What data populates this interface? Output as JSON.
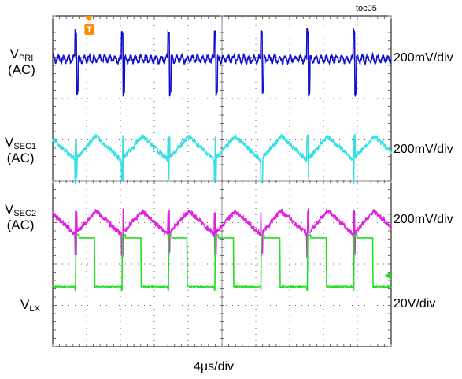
{
  "chart_data": {
    "type": "line",
    "title": "",
    "figure_tag": "toc05",
    "x_scale_label": "4μs/div",
    "trigger_marker": "T",
    "divisions": {
      "x": 10,
      "y": 8
    },
    "grid": true,
    "channels": [
      {
        "name_main": "V",
        "name_sub": "PRI",
        "suffix": "(AC)",
        "scale": "200mV/div",
        "color": "#1010cc",
        "shape": "ripple-with-spikes",
        "period_div": 1.37,
        "first_edge_div": 0.66,
        "baseline_div": 1.05
      },
      {
        "name_main": "V",
        "name_sub": "SEC1",
        "suffix": "(AC)",
        "scale": "200mV/div",
        "color": "#33e0e6",
        "shape": "sawtooth-ripple",
        "period_div": 1.37,
        "first_edge_div": 0.66,
        "baseline_div": 3.2
      },
      {
        "name_main": "V",
        "name_sub": "SEC2",
        "suffix": "(AC)",
        "scale": "200mV/div",
        "color": "#e020e0",
        "shape": "sawtooth-ripple",
        "period_div": 1.37,
        "first_edge_div": 0.66,
        "baseline_div": 5.0
      },
      {
        "name_main": "V",
        "name_sub": "LX",
        "suffix": "",
        "scale": "20V/div",
        "color": "#22dd22",
        "shape": "square-pulse",
        "period_div": 1.37,
        "first_edge_div": 0.66,
        "baseline_div": 6.55
      }
    ]
  }
}
